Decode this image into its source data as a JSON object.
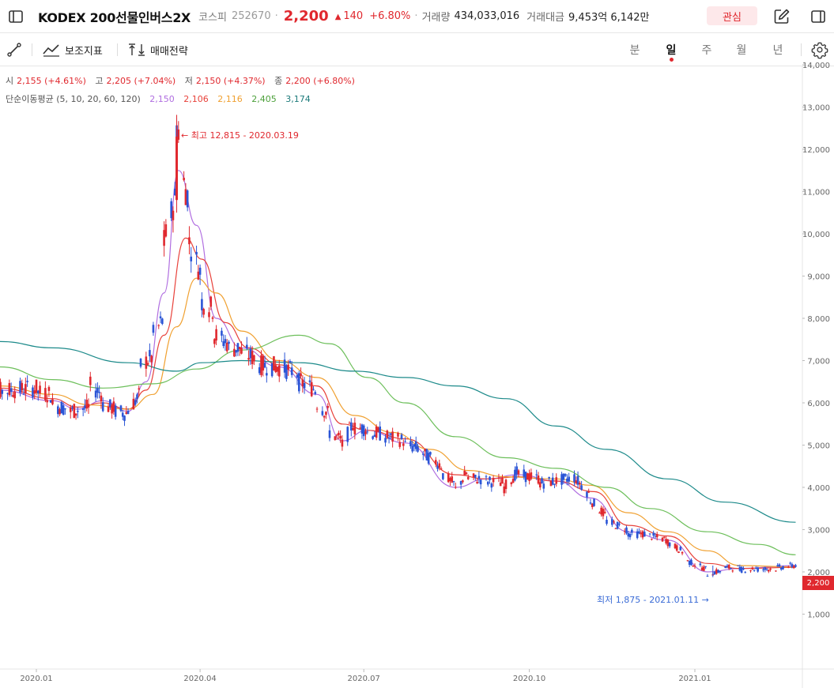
{
  "header": {
    "name": "KODEX 200선물인버스2X",
    "market": "코스피",
    "code": "252670",
    "separator": "·",
    "price": "2,200",
    "change_arrow": "▲",
    "change": "140",
    "change_pct": "+6.80%",
    "volume_label": "거래량",
    "volume": "434,033,016",
    "amount_label": "거래대금",
    "amount": "9,453억 6,142만",
    "favorite_label": "관심"
  },
  "toolbar": {
    "indicator_label": "보조지표",
    "strategy_label": "매매전략",
    "periods": [
      "분",
      "일",
      "주",
      "월",
      "년"
    ],
    "active_period": "일"
  },
  "ohlc": {
    "open_label": "시",
    "open": "2,155 (+4.61%)",
    "high_label": "고",
    "high": "2,205 (+7.04%)",
    "low_label": "저",
    "low": "2,150 (+4.37%)",
    "close_label": "종",
    "close": "2,200 (+6.80%)"
  },
  "ma_info": {
    "label": "단순이동평균 (5, 10, 20, 60, 120)",
    "values": [
      "2,150",
      "2,106",
      "2,116",
      "2,405",
      "3,174"
    ],
    "colors": [
      "#b06ee0",
      "#e8413a",
      "#f0a030",
      "#6cbf5a",
      "#1c8a8a"
    ]
  },
  "chart_data": {
    "type": "line",
    "title": "",
    "xlabel": "",
    "ylabel": "",
    "ylim": [
      0,
      14500
    ],
    "xlim": [
      "2020-01-01",
      "2021-03-01"
    ],
    "x_ticks": [
      "2020.01",
      "2020.04",
      "2020.07",
      "2020.10",
      "2021.01"
    ],
    "y_ticks": [
      "1,000",
      "2,000",
      "3,000",
      "4,000",
      "5,000",
      "6,000",
      "7,000",
      "8,000",
      "9,000",
      "10,000",
      "11,000",
      "12,000",
      "13,000",
      "14,000"
    ],
    "last_price_label": "2,200",
    "high_annotation": {
      "text": "최고 12,815 - 2020.03.19",
      "date": "2020-03-19",
      "value": 12815
    },
    "low_annotation": {
      "text": "최저 1,875 - 2021.01.11",
      "date": "2021-01-11",
      "value": 1875
    },
    "up_color": "#e0282e",
    "down_color": "#2b55d6",
    "ohlc_series": [
      {
        "date": "2019-12-02",
        "o": 6400,
        "c": 6250
      },
      {
        "date": "2020-01-02",
        "o": 6350,
        "c": 6250
      },
      {
        "date": "2020-01-10",
        "o": 6200,
        "c": 5950
      },
      {
        "date": "2020-01-20",
        "o": 5850,
        "c": 5800
      },
      {
        "date": "2020-01-31",
        "o": 5900,
        "c": 6400
      },
      {
        "date": "2020-02-07",
        "o": 6200,
        "c": 5950
      },
      {
        "date": "2020-02-14",
        "o": 5850,
        "c": 5800
      },
      {
        "date": "2020-02-21",
        "o": 5750,
        "c": 5850
      },
      {
        "date": "2020-02-28",
        "o": 6200,
        "c": 6900
      },
      {
        "date": "2020-03-06",
        "o": 7100,
        "c": 7600
      },
      {
        "date": "2020-03-12",
        "o": 8000,
        "c": 9800
      },
      {
        "date": "2020-03-19",
        "o": 11000,
        "c": 12600
      },
      {
        "date": "2020-03-23",
        "o": 12000,
        "c": 11200
      },
      {
        "date": "2020-03-26",
        "o": 10800,
        "c": 9800
      },
      {
        "date": "2020-04-02",
        "o": 9000,
        "c": 8400
      },
      {
        "date": "2020-04-09",
        "o": 8200,
        "c": 7600
      },
      {
        "date": "2020-04-17",
        "o": 7400,
        "c": 7300
      },
      {
        "date": "2020-04-24",
        "o": 7300,
        "c": 7200
      },
      {
        "date": "2020-05-04",
        "o": 7000,
        "c": 6900
      },
      {
        "date": "2020-05-15",
        "o": 6850,
        "c": 6850
      },
      {
        "date": "2020-05-26",
        "o": 6700,
        "c": 6500
      },
      {
        "date": "2020-06-05",
        "o": 6300,
        "c": 6000
      },
      {
        "date": "2020-06-12",
        "o": 5700,
        "c": 5300
      },
      {
        "date": "2020-06-19",
        "o": 5100,
        "c": 5000
      },
      {
        "date": "2020-06-26",
        "o": 5600,
        "c": 5400
      },
      {
        "date": "2020-07-03",
        "o": 5400,
        "c": 5300
      },
      {
        "date": "2020-07-13",
        "o": 5250,
        "c": 5200
      },
      {
        "date": "2020-07-24",
        "o": 5100,
        "c": 5000
      },
      {
        "date": "2020-08-03",
        "o": 4900,
        "c": 4800
      },
      {
        "date": "2020-08-14",
        "o": 4500,
        "c": 4300
      },
      {
        "date": "2020-08-21",
        "o": 4050,
        "c": 3950
      },
      {
        "date": "2020-08-28",
        "o": 4400,
        "c": 4200
      },
      {
        "date": "2020-09-07",
        "o": 4200,
        "c": 4150
      },
      {
        "date": "2020-09-17",
        "o": 4100,
        "c": 4000
      },
      {
        "date": "2020-09-25",
        "o": 4400,
        "c": 4300
      },
      {
        "date": "2020-10-07",
        "o": 4200,
        "c": 4100
      },
      {
        "date": "2020-10-16",
        "o": 4150,
        "c": 4150
      },
      {
        "date": "2020-10-27",
        "o": 4250,
        "c": 4200
      },
      {
        "date": "2020-11-04",
        "o": 3800,
        "c": 3700
      },
      {
        "date": "2020-11-13",
        "o": 3300,
        "c": 3200
      },
      {
        "date": "2020-11-25",
        "o": 3000,
        "c": 2900
      },
      {
        "date": "2020-12-07",
        "o": 2900,
        "c": 2850
      },
      {
        "date": "2020-12-17",
        "o": 2750,
        "c": 2700
      },
      {
        "date": "2020-12-28",
        "o": 2400,
        "c": 2250
      },
      {
        "date": "2021-01-08",
        "o": 2050,
        "c": 1950
      },
      {
        "date": "2021-01-18",
        "o": 2050,
        "c": 2100
      },
      {
        "date": "2021-01-26",
        "o": 2100,
        "c": 2050
      },
      {
        "date": "2021-02-05",
        "o": 2080,
        "c": 2060
      },
      {
        "date": "2021-02-16",
        "o": 2080,
        "c": 2100
      },
      {
        "date": "2021-02-26",
        "o": 2155,
        "c": 2200
      }
    ],
    "series": [
      {
        "name": "5",
        "color": "#b06ee0",
        "points": [
          [
            "2019-12-02",
            6300
          ],
          [
            "2020-01-10",
            6050
          ],
          [
            "2020-01-24",
            5850
          ],
          [
            "2020-02-07",
            6050
          ],
          [
            "2020-02-21",
            5800
          ],
          [
            "2020-03-02",
            6500
          ],
          [
            "2020-03-12",
            8600
          ],
          [
            "2020-03-20",
            11500
          ],
          [
            "2020-03-30",
            10200
          ],
          [
            "2020-04-10",
            8000
          ],
          [
            "2020-04-24",
            7300
          ],
          [
            "2020-05-15",
            6850
          ],
          [
            "2020-06-05",
            6200
          ],
          [
            "2020-06-19",
            5100
          ],
          [
            "2020-07-03",
            5350
          ],
          [
            "2020-07-24",
            5050
          ],
          [
            "2020-08-21",
            4000
          ],
          [
            "2020-09-07",
            4200
          ],
          [
            "2020-09-25",
            4300
          ],
          [
            "2020-10-16",
            4150
          ],
          [
            "2020-11-04",
            3750
          ],
          [
            "2020-11-25",
            2950
          ],
          [
            "2020-12-17",
            2750
          ],
          [
            "2021-01-08",
            2000
          ],
          [
            "2021-01-26",
            2080
          ],
          [
            "2021-02-26",
            2150
          ]
        ]
      },
      {
        "name": "10",
        "color": "#e8413a",
        "points": [
          [
            "2019-12-02",
            6350
          ],
          [
            "2020-01-10",
            6100
          ],
          [
            "2020-01-24",
            5900
          ],
          [
            "2020-02-07",
            6000
          ],
          [
            "2020-02-21",
            5850
          ],
          [
            "2020-03-02",
            6300
          ],
          [
            "2020-03-12",
            7600
          ],
          [
            "2020-03-24",
            9900
          ],
          [
            "2020-04-02",
            9400
          ],
          [
            "2020-04-15",
            7900
          ],
          [
            "2020-04-28",
            7300
          ],
          [
            "2020-05-15",
            6900
          ],
          [
            "2020-06-05",
            6400
          ],
          [
            "2020-06-19",
            5500
          ],
          [
            "2020-07-03",
            5350
          ],
          [
            "2020-07-24",
            5150
          ],
          [
            "2020-08-21",
            4300
          ],
          [
            "2020-09-07",
            4200
          ],
          [
            "2020-09-25",
            4250
          ],
          [
            "2020-10-16",
            4150
          ],
          [
            "2020-11-06",
            3900
          ],
          [
            "2020-11-25",
            3100
          ],
          [
            "2020-12-17",
            2850
          ],
          [
            "2021-01-08",
            2200
          ],
          [
            "2021-01-26",
            2080
          ],
          [
            "2021-02-26",
            2106
          ]
        ]
      },
      {
        "name": "20",
        "color": "#f0a030",
        "points": [
          [
            "2019-12-02",
            6400
          ],
          [
            "2020-01-10",
            6200
          ],
          [
            "2020-01-31",
            5950
          ],
          [
            "2020-02-21",
            5850
          ],
          [
            "2020-03-06",
            6200
          ],
          [
            "2020-03-19",
            7800
          ],
          [
            "2020-03-30",
            8950
          ],
          [
            "2020-04-10",
            8600
          ],
          [
            "2020-04-24",
            7700
          ],
          [
            "2020-05-15",
            7000
          ],
          [
            "2020-06-05",
            6600
          ],
          [
            "2020-06-26",
            5700
          ],
          [
            "2020-07-17",
            5300
          ],
          [
            "2020-08-07",
            4900
          ],
          [
            "2020-08-28",
            4400
          ],
          [
            "2020-09-18",
            4250
          ],
          [
            "2020-10-16",
            4200
          ],
          [
            "2020-11-04",
            4050
          ],
          [
            "2020-11-25",
            3400
          ],
          [
            "2020-12-17",
            2950
          ],
          [
            "2021-01-08",
            2500
          ],
          [
            "2021-01-26",
            2150
          ],
          [
            "2021-02-26",
            2116
          ]
        ]
      },
      {
        "name": "60",
        "color": "#6cbf5a",
        "points": [
          [
            "2019-12-02",
            6850
          ],
          [
            "2020-01-10",
            6550
          ],
          [
            "2020-02-07",
            6350
          ],
          [
            "2020-03-06",
            6450
          ],
          [
            "2020-03-30",
            6800
          ],
          [
            "2020-04-24",
            7250
          ],
          [
            "2020-05-26",
            7600
          ],
          [
            "2020-06-12",
            7400
          ],
          [
            "2020-07-03",
            6600
          ],
          [
            "2020-07-24",
            6000
          ],
          [
            "2020-08-21",
            5200
          ],
          [
            "2020-09-18",
            4700
          ],
          [
            "2020-10-16",
            4450
          ],
          [
            "2020-11-13",
            4000
          ],
          [
            "2020-12-07",
            3500
          ],
          [
            "2021-01-08",
            2950
          ],
          [
            "2021-02-05",
            2650
          ],
          [
            "2021-02-26",
            2405
          ]
        ]
      },
      {
        "name": "120",
        "color": "#1c8a8a",
        "points": [
          [
            "2019-12-02",
            7450
          ],
          [
            "2020-01-10",
            7300
          ],
          [
            "2020-02-21",
            6950
          ],
          [
            "2020-03-19",
            6750
          ],
          [
            "2020-04-02",
            6950
          ],
          [
            "2020-04-24",
            7000
          ],
          [
            "2020-05-26",
            6950
          ],
          [
            "2020-06-26",
            6750
          ],
          [
            "2020-07-24",
            6600
          ],
          [
            "2020-08-21",
            6400
          ],
          [
            "2020-09-18",
            6100
          ],
          [
            "2020-10-16",
            5450
          ],
          [
            "2020-11-13",
            4900
          ],
          [
            "2020-12-17",
            4200
          ],
          [
            "2021-01-18",
            3650
          ],
          [
            "2021-02-26",
            3174
          ]
        ]
      }
    ]
  }
}
